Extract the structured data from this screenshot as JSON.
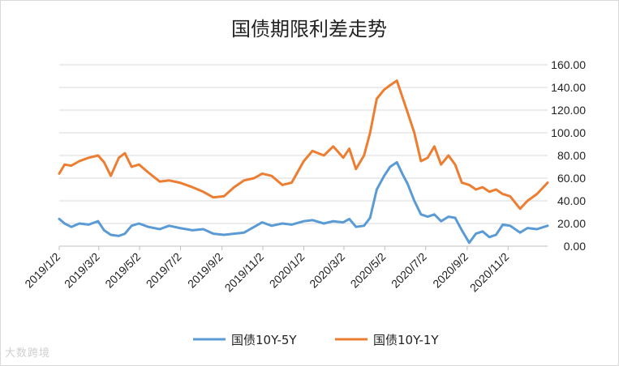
{
  "chart_data": {
    "type": "line",
    "title": "国债期限利差走势",
    "xlabel": "",
    "ylabel": "",
    "ylim": [
      0,
      160
    ],
    "ytick_labels": [
      "0.00",
      "20.00",
      "40.00",
      "60.00",
      "80.00",
      "100.00",
      "120.00",
      "140.00",
      "160.00"
    ],
    "ytick_values": [
      0,
      20,
      40,
      60,
      80,
      100,
      120,
      140,
      160
    ],
    "xlim": [
      "2019-01-02",
      "2020-12-31"
    ],
    "xtick_labels": [
      "2019/1/2",
      "2019/3/2",
      "2019/5/2",
      "2019/7/2",
      "2019/9/2",
      "2019/11/2",
      "2020/1/2",
      "2020/3/2",
      "2020/5/2",
      "2020/7/2",
      "2020/9/2",
      "2020/11/2"
    ],
    "xtick_dates": [
      "2019-01-02",
      "2019-03-02",
      "2019-05-02",
      "2019-07-02",
      "2019-09-02",
      "2019-11-02",
      "2020-01-02",
      "2020-03-02",
      "2020-05-02",
      "2020-07-02",
      "2020-09-02",
      "2020-11-02"
    ],
    "grid": true,
    "legend_position": "bottom",
    "series": [
      {
        "name": "国债10Y-5Y",
        "color": "#5b9bd5",
        "points": [
          [
            "2019-01-02",
            24
          ],
          [
            "2019-01-10",
            20
          ],
          [
            "2019-01-20",
            17
          ],
          [
            "2019-02-01",
            20
          ],
          [
            "2019-02-15",
            19
          ],
          [
            "2019-03-01",
            22
          ],
          [
            "2019-03-10",
            14
          ],
          [
            "2019-03-20",
            10
          ],
          [
            "2019-04-01",
            9
          ],
          [
            "2019-04-10",
            11
          ],
          [
            "2019-04-20",
            18
          ],
          [
            "2019-05-01",
            20
          ],
          [
            "2019-05-15",
            17
          ],
          [
            "2019-06-01",
            15
          ],
          [
            "2019-06-15",
            18
          ],
          [
            "2019-07-01",
            16
          ],
          [
            "2019-07-20",
            14
          ],
          [
            "2019-08-05",
            15
          ],
          [
            "2019-08-20",
            11
          ],
          [
            "2019-09-05",
            10
          ],
          [
            "2019-09-20",
            11
          ],
          [
            "2019-10-05",
            12
          ],
          [
            "2019-10-20",
            17
          ],
          [
            "2019-11-01",
            21
          ],
          [
            "2019-11-15",
            18
          ],
          [
            "2019-12-01",
            20
          ],
          [
            "2019-12-15",
            19
          ],
          [
            "2020-01-02",
            22
          ],
          [
            "2020-01-15",
            23
          ],
          [
            "2020-02-01",
            20
          ],
          [
            "2020-02-15",
            22
          ],
          [
            "2020-03-01",
            21
          ],
          [
            "2020-03-10",
            24
          ],
          [
            "2020-03-20",
            17
          ],
          [
            "2020-04-01",
            18
          ],
          [
            "2020-04-10",
            25
          ],
          [
            "2020-04-20",
            50
          ],
          [
            "2020-05-01",
            62
          ],
          [
            "2020-05-10",
            70
          ],
          [
            "2020-05-20",
            74
          ],
          [
            "2020-05-28",
            64
          ],
          [
            "2020-06-05",
            55
          ],
          [
            "2020-06-15",
            40
          ],
          [
            "2020-06-25",
            28
          ],
          [
            "2020-07-05",
            26
          ],
          [
            "2020-07-15",
            28
          ],
          [
            "2020-07-25",
            22
          ],
          [
            "2020-08-05",
            26
          ],
          [
            "2020-08-15",
            25
          ],
          [
            "2020-08-25",
            14
          ],
          [
            "2020-09-05",
            3
          ],
          [
            "2020-09-15",
            11
          ],
          [
            "2020-09-25",
            13
          ],
          [
            "2020-10-05",
            8
          ],
          [
            "2020-10-15",
            10
          ],
          [
            "2020-10-25",
            19
          ],
          [
            "2020-11-05",
            18
          ],
          [
            "2020-11-20",
            12
          ],
          [
            "2020-12-01",
            16
          ],
          [
            "2020-12-15",
            15
          ],
          [
            "2020-12-31",
            18
          ]
        ]
      },
      {
        "name": "国债10Y-1Y",
        "color": "#ed7d31",
        "points": [
          [
            "2019-01-02",
            64
          ],
          [
            "2019-01-10",
            72
          ],
          [
            "2019-01-20",
            71
          ],
          [
            "2019-02-01",
            75
          ],
          [
            "2019-02-15",
            78
          ],
          [
            "2019-03-01",
            80
          ],
          [
            "2019-03-10",
            74
          ],
          [
            "2019-03-20",
            62
          ],
          [
            "2019-04-01",
            78
          ],
          [
            "2019-04-10",
            82
          ],
          [
            "2019-04-20",
            70
          ],
          [
            "2019-05-01",
            72
          ],
          [
            "2019-05-15",
            65
          ],
          [
            "2019-06-01",
            57
          ],
          [
            "2019-06-15",
            58
          ],
          [
            "2019-07-01",
            56
          ],
          [
            "2019-07-20",
            52
          ],
          [
            "2019-08-05",
            48
          ],
          [
            "2019-08-20",
            43
          ],
          [
            "2019-09-05",
            44
          ],
          [
            "2019-09-20",
            52
          ],
          [
            "2019-10-05",
            58
          ],
          [
            "2019-10-20",
            60
          ],
          [
            "2019-11-01",
            64
          ],
          [
            "2019-11-15",
            62
          ],
          [
            "2019-12-01",
            54
          ],
          [
            "2019-12-15",
            56
          ],
          [
            "2020-01-02",
            75
          ],
          [
            "2020-01-15",
            84
          ],
          [
            "2020-02-01",
            80
          ],
          [
            "2020-02-15",
            88
          ],
          [
            "2020-03-01",
            78
          ],
          [
            "2020-03-10",
            86
          ],
          [
            "2020-03-20",
            68
          ],
          [
            "2020-04-01",
            80
          ],
          [
            "2020-04-10",
            100
          ],
          [
            "2020-04-20",
            130
          ],
          [
            "2020-05-01",
            138
          ],
          [
            "2020-05-10",
            142
          ],
          [
            "2020-05-20",
            146
          ],
          [
            "2020-05-28",
            132
          ],
          [
            "2020-06-05",
            118
          ],
          [
            "2020-06-15",
            100
          ],
          [
            "2020-06-25",
            75
          ],
          [
            "2020-07-05",
            78
          ],
          [
            "2020-07-15",
            88
          ],
          [
            "2020-07-25",
            72
          ],
          [
            "2020-08-05",
            80
          ],
          [
            "2020-08-15",
            72
          ],
          [
            "2020-08-25",
            56
          ],
          [
            "2020-09-05",
            54
          ],
          [
            "2020-09-15",
            50
          ],
          [
            "2020-09-25",
            52
          ],
          [
            "2020-10-05",
            48
          ],
          [
            "2020-10-15",
            50
          ],
          [
            "2020-10-25",
            46
          ],
          [
            "2020-11-05",
            44
          ],
          [
            "2020-11-20",
            33
          ],
          [
            "2020-12-01",
            40
          ],
          [
            "2020-12-15",
            46
          ],
          [
            "2020-12-31",
            56
          ]
        ]
      }
    ]
  },
  "watermark": "大数跨境"
}
